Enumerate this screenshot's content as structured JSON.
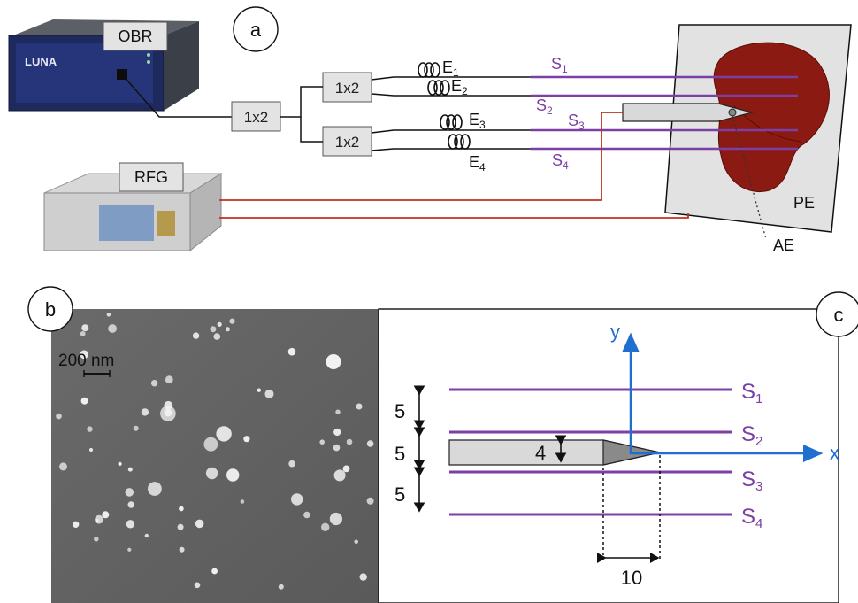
{
  "panel_a": {
    "label": "a",
    "obr_label": "OBR",
    "rfg_label": "RFG",
    "brand": "LUNA",
    "splitter_main": "1x2",
    "splitter_top": "1x2",
    "splitter_bottom": "1x2",
    "e1": "E",
    "e1_sub": "1",
    "e2": "E",
    "e2_sub": "2",
    "e3": "E",
    "e3_sub": "3",
    "e4": "E",
    "e4_sub": "4",
    "s1": "S",
    "s1_sub": "1",
    "s2": "S",
    "s2_sub": "2",
    "s3": "S",
    "s3_sub": "3",
    "s4": "S",
    "s4_sub": "4",
    "pe": "PE",
    "ae": "AE"
  },
  "panel_b": {
    "label": "b",
    "scale_text": "200 nm"
  },
  "panel_c": {
    "label": "c",
    "y_axis": "y",
    "x_axis": "x",
    "s1": "S",
    "s1_sub": "1",
    "s2": "S",
    "s2_sub": "2",
    "s3": "S",
    "s3_sub": "3",
    "s4": "S",
    "s4_sub": "4",
    "dim_5a": "5",
    "dim_5b": "5",
    "dim_5c": "5",
    "dim_4": "4",
    "dim_10": "10"
  },
  "colors": {
    "sensor_purple": "#7b3fa5",
    "rf_red": "#c0321f",
    "axis_blue": "#1f6fd1",
    "tissue": "#8b1a12"
  }
}
